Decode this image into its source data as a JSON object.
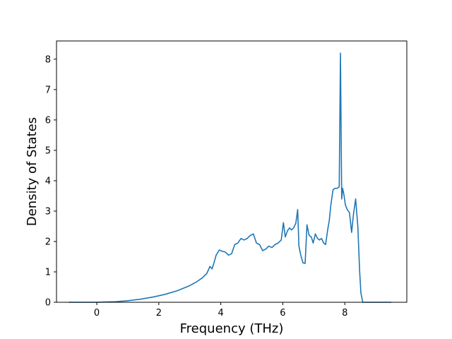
{
  "chart_data": {
    "type": "line",
    "title": "",
    "xlabel": "Frequency (THz)",
    "ylabel": "Density of States",
    "xlim": [
      -1.3,
      10.0
    ],
    "ylim": [
      0,
      8.6
    ],
    "xticks": [
      0,
      2,
      4,
      6,
      8
    ],
    "yticks": [
      0,
      1,
      2,
      3,
      4,
      5,
      6,
      7,
      8
    ],
    "grid": false,
    "legend": "none",
    "color": "#1f77b4",
    "series": [
      {
        "x": [
          -0.9,
          -0.5,
          0,
          0.3,
          0.6,
          1.0,
          1.4,
          1.8,
          2.2,
          2.6,
          3.0,
          3.2,
          3.4,
          3.55,
          3.65,
          3.72,
          3.78,
          3.85,
          3.95,
          4.05,
          4.15,
          4.25,
          4.35,
          4.45,
          4.55,
          4.65,
          4.75,
          4.85,
          4.95,
          5.05,
          5.15,
          5.25,
          5.35,
          5.45,
          5.55,
          5.65,
          5.75,
          5.85,
          5.95,
          6.02,
          6.08,
          6.15,
          6.22,
          6.28,
          6.35,
          6.42,
          6.48,
          6.52,
          6.58,
          6.65,
          6.72,
          6.78,
          6.85,
          6.92,
          6.98,
          7.05,
          7.12,
          7.18,
          7.25,
          7.32,
          7.38,
          7.45,
          7.5,
          7.55,
          7.62,
          7.68,
          7.75,
          7.82,
          7.86,
          7.9,
          7.93,
          7.97,
          8.02,
          8.08,
          8.15,
          8.22,
          8.28,
          8.35,
          8.42,
          8.48,
          8.52,
          8.58,
          8.63,
          8.8,
          9.1,
          9.5
        ],
        "y": [
          0,
          0,
          0,
          0.01,
          0.02,
          0.05,
          0.1,
          0.17,
          0.26,
          0.38,
          0.55,
          0.66,
          0.8,
          0.95,
          1.18,
          1.1,
          1.3,
          1.55,
          1.72,
          1.68,
          1.65,
          1.55,
          1.6,
          1.9,
          1.95,
          2.1,
          2.05,
          2.1,
          2.2,
          2.25,
          1.95,
          1.9,
          1.7,
          1.75,
          1.85,
          1.8,
          1.9,
          1.95,
          2.05,
          2.62,
          2.15,
          2.35,
          2.45,
          2.38,
          2.45,
          2.6,
          3.05,
          1.85,
          1.55,
          1.3,
          1.28,
          2.55,
          2.2,
          2.15,
          1.95,
          2.25,
          2.1,
          2.05,
          2.1,
          1.95,
          1.9,
          2.4,
          2.7,
          3.2,
          3.7,
          3.75,
          3.75,
          3.8,
          8.2,
          3.4,
          3.75,
          3.55,
          3.2,
          3.05,
          2.95,
          2.3,
          2.9,
          3.4,
          2.5,
          1.0,
          0.3,
          0,
          0,
          0,
          0,
          0
        ]
      }
    ]
  }
}
